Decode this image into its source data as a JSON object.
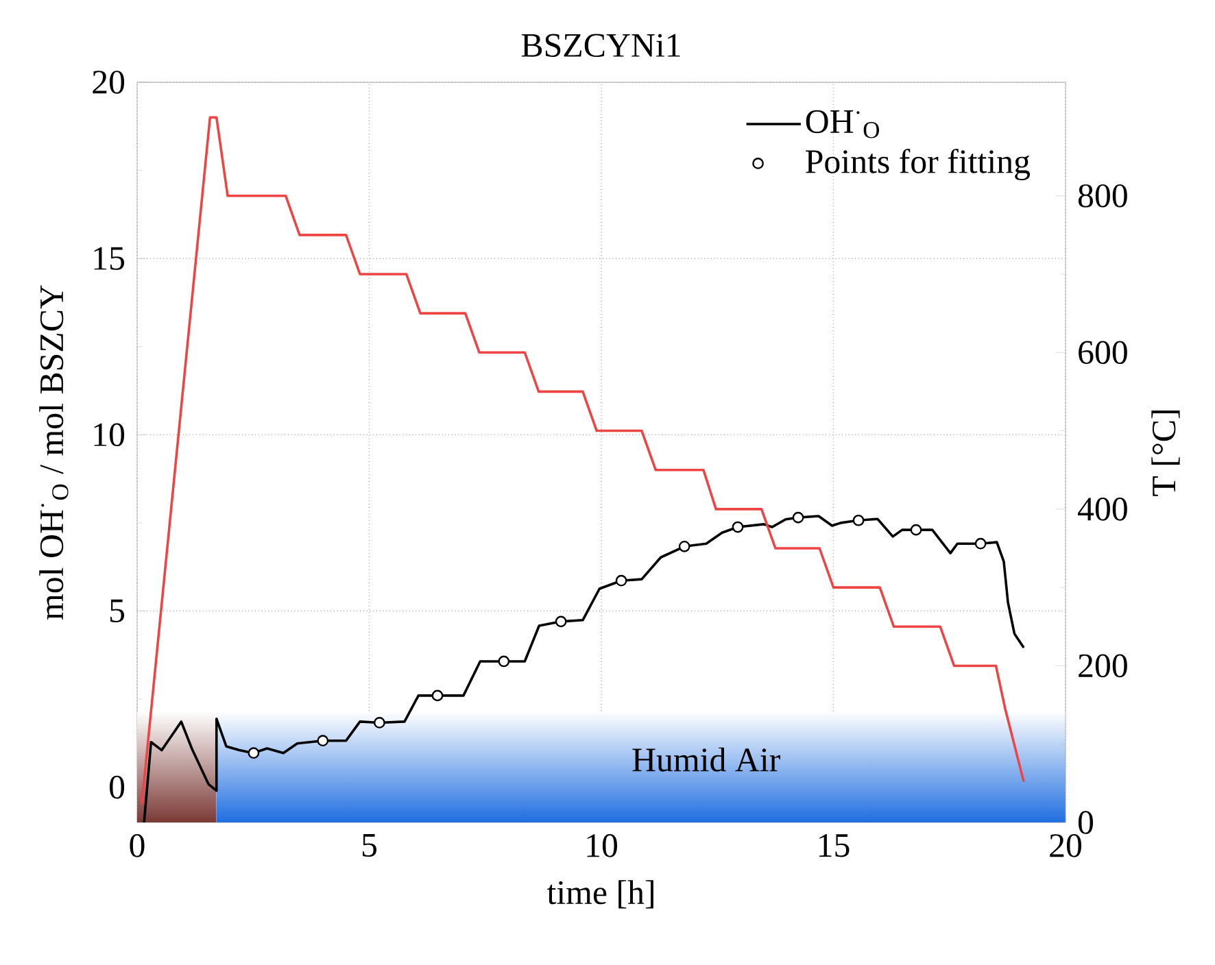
{
  "chart_data": {
    "type": "line",
    "title": "BSZCYNi1",
    "xlabel": "time [h]",
    "ylabel": "mol OH$^{·}$$_{O}$ / mol BSZCY",
    "y2label": "T [°C]",
    "xlim": [
      0,
      20
    ],
    "xticks": [
      0,
      5,
      10,
      15,
      20
    ],
    "ylim": [
      -1,
      20
    ],
    "yticks": [
      0,
      5,
      10,
      15,
      20
    ],
    "y2lim": [
      0,
      945
    ],
    "y2ticks": [
      0,
      200,
      400,
      600,
      800
    ],
    "grid": true,
    "legend": "top right",
    "bands": [
      {
        "axis": "x",
        "from": 0,
        "to": 1.71,
        "color": "#7a3a36"
      },
      {
        "axis": "x",
        "from": 1.71,
        "to": 20,
        "color": "#1f6ee0",
        "label": "Humid Air"
      }
    ],
    "series": [
      {
        "name": "OH$^{·}$$_{O}$",
        "color": "#000000",
        "marker": "none",
        "x": [
          0.15,
          0.3,
          0.53,
          0.95,
          1.18,
          1.54,
          1.71,
          1.71,
          1.92,
          2.2,
          2.5,
          2.8,
          3.15,
          3.45,
          4.0,
          4.5,
          4.8,
          5.22,
          5.76,
          6.06,
          6.47,
          7.03,
          7.39,
          7.9,
          8.35,
          8.66,
          9.13,
          9.6,
          9.96,
          10.43,
          10.87,
          11.28,
          11.79,
          12.26,
          12.6,
          12.94,
          13.5,
          13.68,
          13.97,
          14.24,
          14.68,
          14.97,
          15.16,
          15.54,
          15.95,
          16.28,
          16.48,
          16.78,
          17.13,
          17.52,
          17.67,
          18.17,
          18.52,
          18.67,
          18.76,
          18.9,
          19.1
        ],
        "values": [
          -1,
          1.28,
          1.05,
          1.86,
          1.09,
          0.08,
          -0.1,
          1.94,
          1.16,
          1.05,
          0.97,
          1.1,
          0.97,
          1.24,
          1.32,
          1.32,
          1.86,
          1.83,
          1.86,
          2.6,
          2.6,
          2.6,
          3.57,
          3.57,
          3.57,
          4.58,
          4.7,
          4.74,
          5.63,
          5.86,
          5.9,
          6.52,
          6.83,
          6.91,
          7.22,
          7.38,
          7.46,
          7.38,
          7.6,
          7.65,
          7.69,
          7.42,
          7.5,
          7.57,
          7.61,
          7.11,
          7.3,
          7.3,
          7.3,
          6.64,
          6.91,
          6.91,
          6.95,
          6.4,
          5.24,
          4.35,
          3.96
        ]
      },
      {
        "name": "Points for fitting",
        "type": "scatter",
        "color": "#000000",
        "marker": "circle",
        "x": [
          2.51,
          4.0,
          5.22,
          6.47,
          7.9,
          9.13,
          10.43,
          11.79,
          12.94,
          14.24,
          15.54,
          16.78,
          18.17
        ],
        "values": [
          0.97,
          1.32,
          1.83,
          2.6,
          3.57,
          4.7,
          5.86,
          6.83,
          7.38,
          7.65,
          7.57,
          7.3,
          6.91
        ]
      },
      {
        "axis": "y2",
        "color": "#ee4444",
        "marker": "none",
        "x": [
          0.1,
          1.57,
          1.71,
          1.95,
          3.2,
          3.5,
          4.5,
          4.8,
          5.8,
          6.1,
          7.07,
          7.37,
          8.35,
          8.65,
          9.6,
          9.9,
          10.87,
          11.17,
          12.2,
          12.47,
          13.45,
          13.75,
          14.7,
          15.0,
          16.0,
          16.3,
          17.3,
          17.6,
          18.5,
          18.7,
          19.1
        ],
        "values": [
          23,
          900,
          900,
          800,
          800,
          750,
          750,
          700,
          700,
          650,
          650,
          600,
          600,
          550,
          550,
          500,
          500,
          450,
          450,
          400,
          400,
          350,
          350,
          300,
          300,
          250,
          250,
          200,
          200,
          145,
          52
        ]
      }
    ]
  }
}
